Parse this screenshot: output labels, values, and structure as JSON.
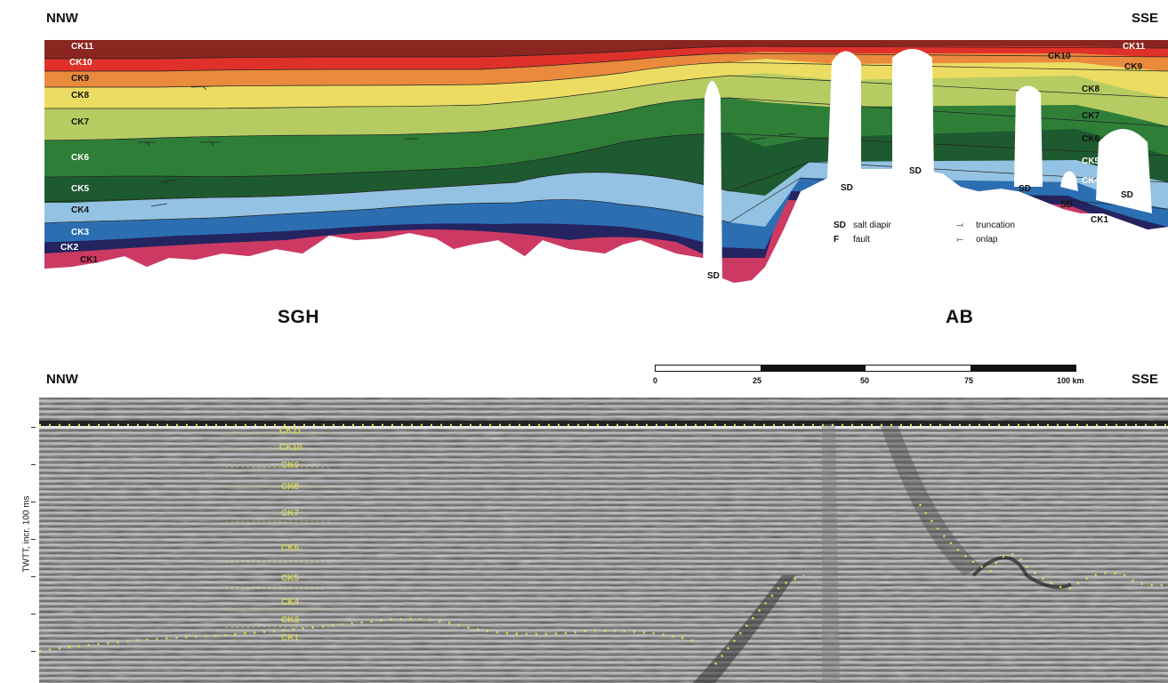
{
  "top_section": {
    "left_direction": "NNW",
    "right_direction": "SSE",
    "units_left": [
      "CK11",
      "CK10",
      "CK9",
      "CK8",
      "CK7",
      "CK6",
      "CK5",
      "CK4",
      "CK3",
      "CK2",
      "CK1"
    ],
    "units_right": [
      "CK11",
      "CK10",
      "CK9",
      "CK8",
      "CK7",
      "CK6",
      "CK5",
      "CK4",
      "CK1"
    ],
    "salt_label": "SD",
    "colors": {
      "CK11": "#8a2520",
      "CK10": "#e0302a",
      "CK9": "#ea8a3c",
      "CK8": "#ecdc62",
      "CK7": "#b6cc62",
      "CK6": "#2e7e38",
      "CK5": "#1e5a30",
      "CK4": "#94c2e2",
      "CK3": "#2b6fb2",
      "CK2": "#242460",
      "CK1": "#cc3a64"
    }
  },
  "legend": {
    "items": [
      {
        "abbr": "SD",
        "text": "salt diapir"
      },
      {
        "abbr": "F",
        "text": "fault"
      },
      {
        "abbr": "",
        "text": "truncation"
      },
      {
        "abbr": "",
        "text": "onlap"
      }
    ]
  },
  "regions": {
    "left": "SGH",
    "right": "AB"
  },
  "scale_bar": {
    "ticks": [
      "0",
      "25",
      "50",
      "75",
      "100 km"
    ]
  },
  "seismic_section": {
    "left_direction": "NNW",
    "right_direction": "SSE",
    "y_axis_label": "TWTT, incr. 100 ms",
    "units": [
      "CK11",
      "CK10",
      "CK9",
      "CK8",
      "CK7",
      "CK6",
      "CK5",
      "CK4",
      "CK3",
      "CK1"
    ]
  }
}
